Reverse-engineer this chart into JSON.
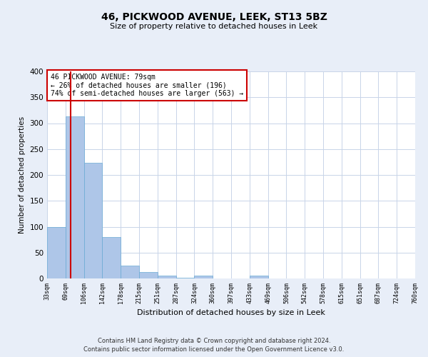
{
  "title": "46, PICKWOOD AVENUE, LEEK, ST13 5BZ",
  "subtitle": "Size of property relative to detached houses in Leek",
  "xlabel": "Distribution of detached houses by size in Leek",
  "ylabel": "Number of detached properties",
  "bin_labels": [
    "33sqm",
    "69sqm",
    "106sqm",
    "142sqm",
    "178sqm",
    "215sqm",
    "251sqm",
    "287sqm",
    "324sqm",
    "360sqm",
    "397sqm",
    "433sqm",
    "469sqm",
    "506sqm",
    "542sqm",
    "578sqm",
    "615sqm",
    "651sqm",
    "687sqm",
    "724sqm",
    "760sqm"
  ],
  "bar_heights": [
    100,
    313,
    224,
    80,
    25,
    12,
    5,
    2,
    5,
    0,
    0,
    5,
    0,
    0,
    0,
    0,
    0,
    0,
    0,
    0,
    3
  ],
  "bar_color": "#aec6e8",
  "bar_edge_color": "#6aaad4",
  "vline_color": "#cc0000",
  "annotation_title": "46 PICKWOOD AVENUE: 79sqm",
  "annotation_line1": "← 26% of detached houses are smaller (196)",
  "annotation_line2": "74% of semi-detached houses are larger (563) →",
  "annotation_box_color": "#cc0000",
  "ylim": [
    0,
    400
  ],
  "yticks": [
    0,
    50,
    100,
    150,
    200,
    250,
    300,
    350,
    400
  ],
  "bin_edges_values": [
    33,
    69,
    106,
    142,
    178,
    215,
    251,
    287,
    324,
    360,
    397,
    433,
    469,
    506,
    542,
    578,
    615,
    651,
    687,
    724,
    760
  ],
  "prop_size": 79,
  "footnote1": "Contains HM Land Registry data © Crown copyright and database right 2024.",
  "footnote2": "Contains public sector information licensed under the Open Government Licence v3.0.",
  "bg_color": "#e8eef8",
  "plot_bg_color": "#ffffff"
}
